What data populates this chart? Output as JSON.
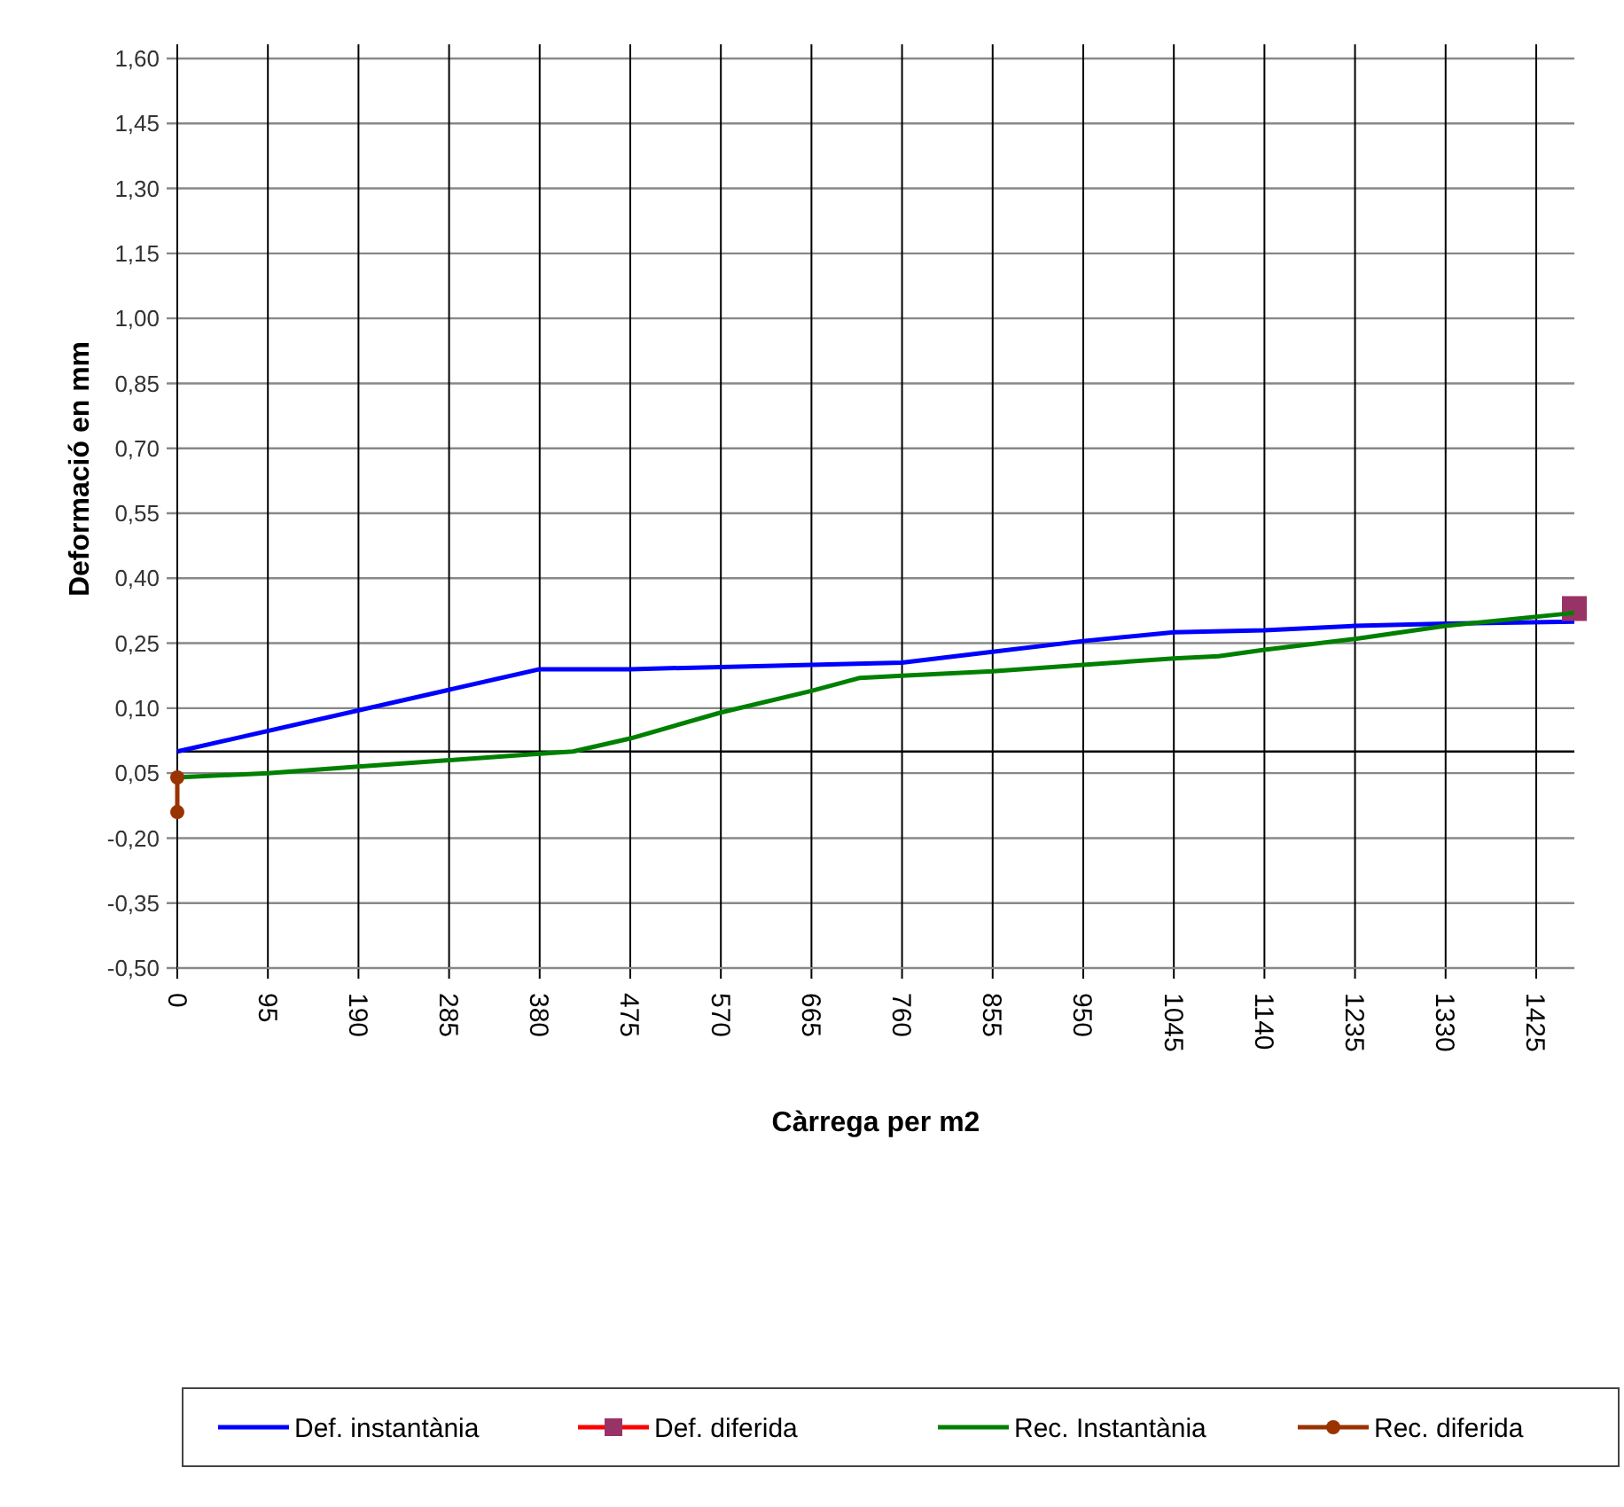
{
  "chart_data": {
    "type": "line",
    "xlabel": "Càrrega per m2",
    "ylabel": "Deformació en mm",
    "xlim": [
      0,
      1465
    ],
    "xticks": [
      0,
      95,
      190,
      285,
      380,
      475,
      570,
      665,
      760,
      855,
      950,
      1045,
      1140,
      1235,
      1330,
      1425
    ],
    "ylim": [
      -0.5,
      1.6
    ],
    "yticks": [
      {
        "value": -0.5,
        "label": "-0,50"
      },
      {
        "value": -0.35,
        "label": "-0,35"
      },
      {
        "value": -0.2,
        "label": "-0,20"
      },
      {
        "value": -0.05,
        "label": "0,05"
      },
      {
        "value": 0.1,
        "label": "0,10"
      },
      {
        "value": 0.25,
        "label": "0,25"
      },
      {
        "value": 0.4,
        "label": "0,40"
      },
      {
        "value": 0.55,
        "label": "0,55"
      },
      {
        "value": 0.7,
        "label": "0,70"
      },
      {
        "value": 0.85,
        "label": "0,85"
      },
      {
        "value": 1.0,
        "label": "1,00"
      },
      {
        "value": 1.15,
        "label": "1,15"
      },
      {
        "value": 1.3,
        "label": "1,30"
      },
      {
        "value": 1.45,
        "label": "1,45"
      },
      {
        "value": 1.6,
        "label": "1,60"
      }
    ],
    "grid": true,
    "legend": "bottom",
    "series": [
      {
        "name": "Def. instantània",
        "color": "#0000ff",
        "marker": "none",
        "x": [
          0,
          380,
          475,
          570,
          665,
          760,
          855,
          950,
          1045,
          1140,
          1235,
          1330,
          1465
        ],
        "values": [
          0.0,
          0.19,
          0.19,
          0.195,
          0.2,
          0.205,
          0.23,
          0.255,
          0.275,
          0.28,
          0.29,
          0.295,
          0.3
        ]
      },
      {
        "name": "Def. diferida",
        "color": "#993366",
        "marker": "square",
        "x": [
          1465
        ],
        "values": [
          0.33
        ]
      },
      {
        "name": "Rec. Instantània",
        "color": "#008000",
        "marker": "none",
        "x": [
          0,
          95,
          190,
          285,
          380,
          415,
          475,
          570,
          665,
          716,
          760,
          855,
          950,
          1045,
          1092,
          1140,
          1235,
          1330,
          1465
        ],
        "values": [
          -0.06,
          -0.05,
          -0.035,
          -0.02,
          -0.005,
          0.0,
          0.03,
          0.09,
          0.14,
          0.17,
          0.175,
          0.185,
          0.2,
          0.215,
          0.22,
          0.235,
          0.26,
          0.29,
          0.32
        ]
      },
      {
        "name": "Rec. diferida",
        "color": "#993300",
        "marker": "circle",
        "x": [
          0,
          0
        ],
        "values": [
          -0.06,
          -0.14
        ]
      }
    ]
  }
}
